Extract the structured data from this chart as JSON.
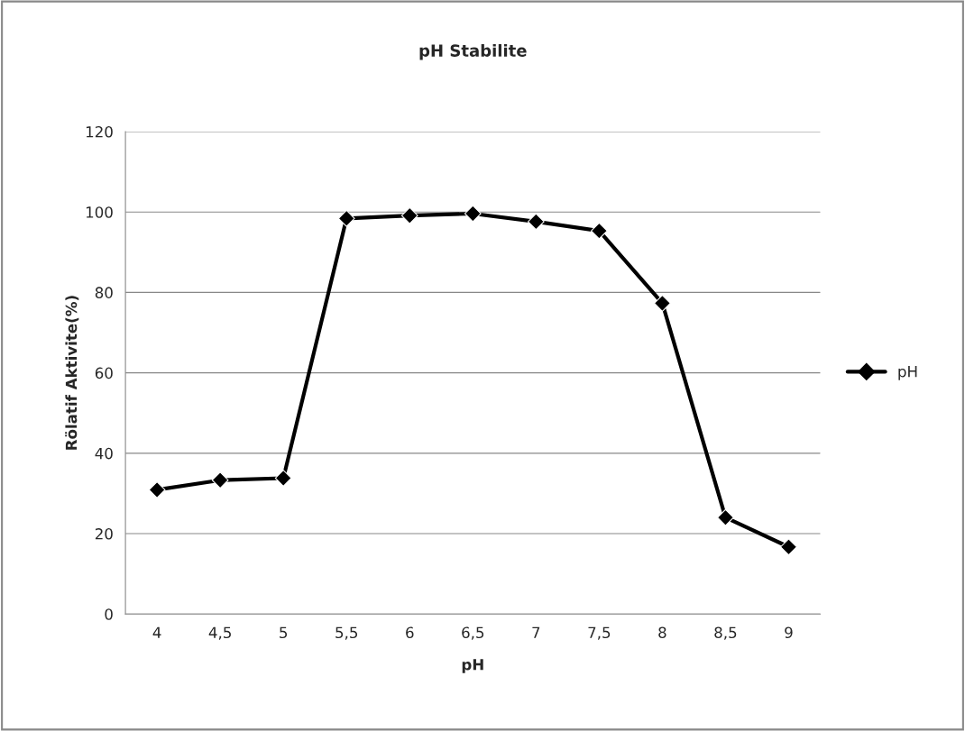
{
  "chart_data": {
    "type": "line",
    "title": "pH Stabilite",
    "xlabel": "pH",
    "ylabel": "Rölatif Aktivite(%)",
    "categories": [
      "4",
      "4,5",
      "5",
      "5,5",
      "6",
      "6,5",
      "7",
      "7,5",
      "8",
      "8,5",
      "9"
    ],
    "series": [
      {
        "name": "pH",
        "color": "#000000",
        "values": [
          30.9,
          33.3,
          33.8,
          98.4,
          99.1,
          99.6,
          97.6,
          95.3,
          77.3,
          24,
          16.7
        ]
      }
    ],
    "ylim": [
      0,
      120
    ],
    "yticks": [
      0,
      20,
      40,
      60,
      80,
      100,
      120
    ],
    "grid": "y",
    "legend": "right",
    "marker": "diamond",
    "line_style": "solid"
  }
}
